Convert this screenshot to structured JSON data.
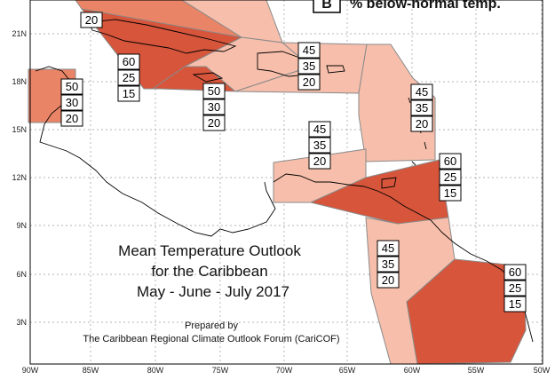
{
  "title": {
    "line1": "Mean Temperature Outlook",
    "line2": "for the Caribbean",
    "line3": "May - June - July 2017"
  },
  "credit": {
    "line1": "Prepared by",
    "line2": "The Caribbean Regional Climate Outlook Forum (CariCOF)"
  },
  "legend": {
    "letter": "B",
    "text": "% below-normal temp."
  },
  "x_ticks": [
    "90W",
    "85W",
    "80W",
    "75W",
    "70W",
    "65W",
    "60W",
    "55W",
    "50W"
  ],
  "y_ticks": [
    "21N",
    "18N",
    "15N",
    "12N",
    "9N",
    "6N",
    "3N"
  ],
  "colors": {
    "light_zone": "#f7bfab",
    "medium_zone": "#ea8466",
    "dark_zone": "#d6553b",
    "zone_border": "#8a8a8a",
    "coast": "#000000",
    "grid": "#999999"
  },
  "zones": [
    {
      "name": "top-left-partial",
      "probs": [
        "",
        "",
        "20"
      ]
    },
    {
      "name": "belize-yucatan",
      "probs": [
        "50",
        "30",
        "20"
      ]
    },
    {
      "name": "cuba-cayman",
      "probs": [
        "60",
        "25",
        "15"
      ]
    },
    {
      "name": "jamaica",
      "probs": [
        "50",
        "30",
        "20"
      ]
    },
    {
      "name": "hispaniola-puerto-rico",
      "probs": [
        "45",
        "35",
        "20"
      ]
    },
    {
      "name": "leeward-islands",
      "probs": [
        "45",
        "35",
        "20"
      ]
    },
    {
      "name": "abc-islands",
      "probs": [
        "45",
        "35",
        "20"
      ]
    },
    {
      "name": "trinidad-windward",
      "probs": [
        "60",
        "25",
        "15"
      ]
    },
    {
      "name": "guyana",
      "probs": [
        "45",
        "35",
        "20"
      ]
    },
    {
      "name": "suriname-french-guiana",
      "probs": [
        "60",
        "25",
        "15"
      ]
    }
  ]
}
